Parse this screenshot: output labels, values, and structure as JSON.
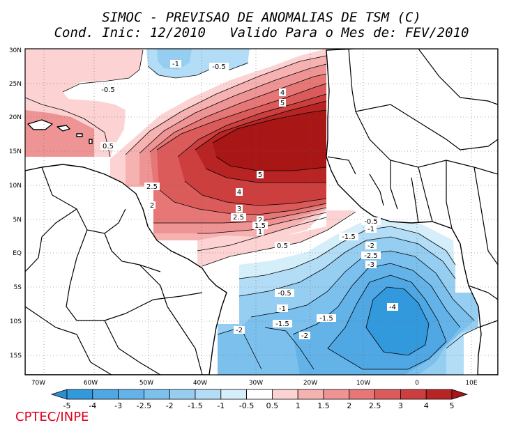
{
  "title_line1": "SIMOC - PREVISAO DE ANOMALIAS DE TSM (C)",
  "title_line2": "Cond. Inic: 12/2010   Valido Para o Mes de: FEV/2010",
  "credit": "CPTEC/INPE",
  "lat_ticks": [
    "30N",
    "25N",
    "20N",
    "15N",
    "10N",
    "5N",
    "EQ",
    "5S",
    "10S",
    "15S"
  ],
  "lon_ticks": [
    "70W",
    "60W",
    "50W",
    "40W",
    "30W",
    "20W",
    "10W",
    "0",
    "10E"
  ],
  "colorbar": {
    "labels": [
      "-5",
      "-4",
      "-3",
      "-2.5",
      "-2",
      "-1.5",
      "-1",
      "-0.5",
      "0.5",
      "1",
      "1.5",
      "2",
      "2.5",
      "3",
      "4",
      "5"
    ],
    "colors": [
      "#2b8fd0",
      "#3399dd",
      "#4fa7e3",
      "#63b3e9",
      "#7cc0ee",
      "#96cef2",
      "#b3ddf6",
      "#d4eefa",
      "#ffffff",
      "#fcd2d2",
      "#f6b1b1",
      "#ef9494",
      "#e77777",
      "#db5a5a",
      "#cd3e3e",
      "#b82424",
      "#a81616"
    ]
  },
  "contour_labels": [
    "-1",
    "-0.5",
    "-0.5",
    "0.5",
    "4",
    "5",
    "5",
    "4",
    "3",
    "2.5",
    "2.5",
    "2",
    "2",
    "1.5",
    "1",
    "0.5",
    "-0.5",
    "-1",
    "-1.5",
    "-2",
    "-2.5",
    "-3",
    "-0.5",
    "-1",
    "-1.5",
    "-1.5",
    "-2",
    "-2",
    "-4"
  ]
}
